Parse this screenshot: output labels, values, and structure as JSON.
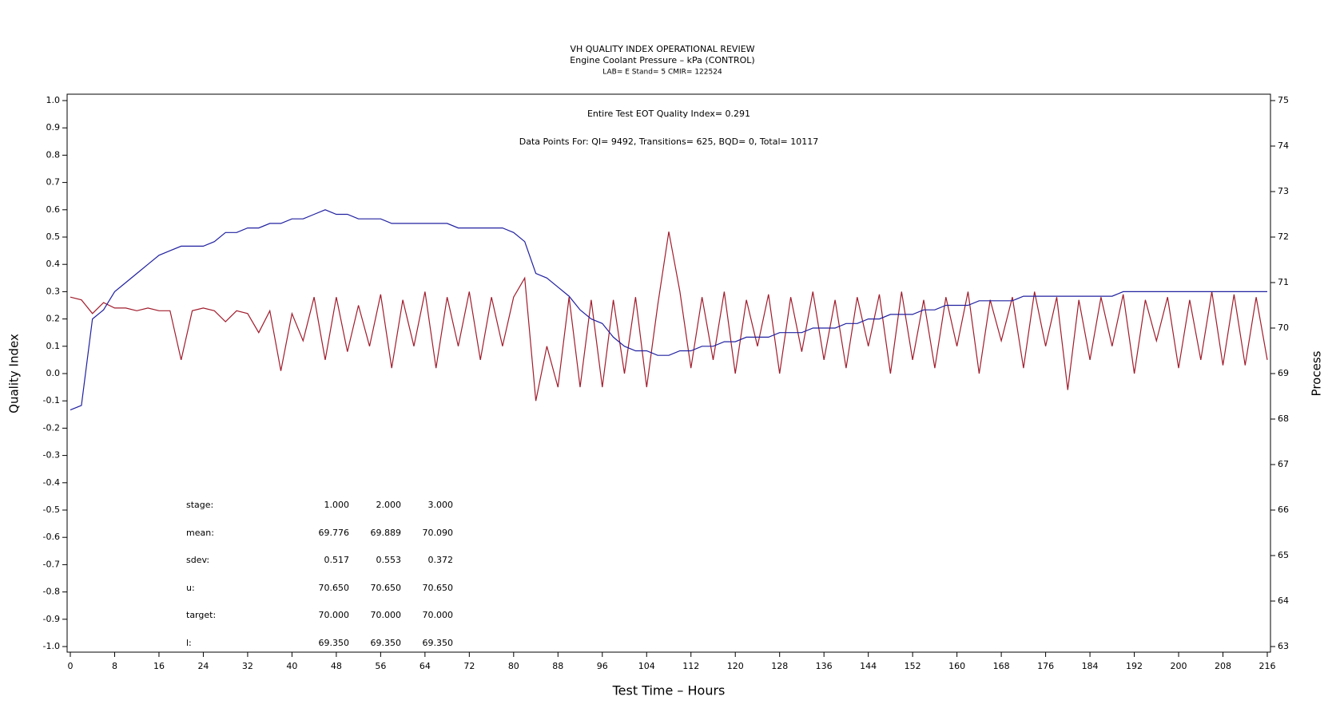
{
  "chart_data": {
    "type": "line",
    "title": "VH QUALITY INDEX OPERATIONAL REVIEW",
    "subtitle": "Engine Coolant Pressure – kPa (CONTROL)",
    "subsubtitle": "LAB= E Stand= 5 CMIR= 122524",
    "annotations": [
      "Entire Test EOT Quality Index=   0.291",
      "Data Points For: QI=  9492, Transitions=    625, BQD=     0, Total= 10117"
    ],
    "stats_table": {
      "rows": [
        [
          "stage:",
          "1.000",
          "2.000",
          "3.000"
        ],
        [
          "mean:",
          "69.776",
          "69.889",
          "70.090"
        ],
        [
          "sdev:",
          "0.517",
          "0.553",
          "0.372"
        ],
        [
          "u:",
          "70.650",
          "70.650",
          "70.650"
        ],
        [
          "target:",
          "70.000",
          "70.000",
          "70.000"
        ],
        [
          "l:",
          "69.350",
          "69.350",
          "69.350"
        ]
      ]
    },
    "x_label": "Test Time – Hours",
    "y_label": "Quality Index",
    "y2_label": "Process",
    "xlim": [
      0,
      216
    ],
    "xticks": [
      0,
      8,
      16,
      24,
      32,
      40,
      48,
      56,
      64,
      72,
      80,
      88,
      96,
      104,
      112,
      120,
      128,
      136,
      144,
      152,
      160,
      168,
      176,
      184,
      192,
      200,
      208,
      216
    ],
    "ylim": [
      -1,
      1
    ],
    "yticks": [
      {
        "value": -1,
        "label": "-1.0"
      },
      -0.9,
      -0.8,
      -0.7,
      -0.6,
      -0.5,
      -0.4,
      -0.3,
      -0.2,
      -0.1,
      {
        "value": 0,
        "label": "0.0"
      },
      0.1,
      0.2,
      0.3,
      0.4,
      0.5,
      0.6,
      0.7,
      0.8,
      0.9,
      {
        "value": 1,
        "label": "1.0"
      }
    ],
    "y2lim": [
      63,
      75
    ],
    "y2ticks": [
      63,
      64,
      65,
      66,
      67,
      68,
      69,
      70,
      71,
      72,
      73,
      74,
      75
    ],
    "x": [
      0,
      2,
      4,
      6,
      8,
      10,
      12,
      14,
      16,
      18,
      20,
      22,
      24,
      26,
      28,
      30,
      32,
      34,
      36,
      38,
      40,
      42,
      44,
      46,
      48,
      50,
      52,
      54,
      56,
      58,
      60,
      62,
      64,
      66,
      68,
      70,
      72,
      74,
      76,
      78,
      80,
      82,
      84,
      86,
      88,
      90,
      92,
      94,
      96,
      98,
      100,
      102,
      104,
      106,
      108,
      110,
      112,
      114,
      116,
      118,
      120,
      122,
      124,
      126,
      128,
      130,
      132,
      134,
      136,
      138,
      140,
      142,
      144,
      146,
      148,
      150,
      152,
      154,
      156,
      158,
      160,
      162,
      164,
      166,
      168,
      170,
      172,
      174,
      176,
      178,
      180,
      182,
      184,
      186,
      188,
      190,
      192,
      194,
      196,
      198,
      200,
      202,
      204,
      206,
      208,
      210,
      212,
      214,
      216
    ],
    "series": [
      {
        "name": "Quality Index",
        "color": "#a01c2c",
        "values": [
          0.28,
          0.27,
          0.22,
          0.26,
          0.24,
          0.24,
          0.23,
          0.24,
          0.23,
          0.23,
          0.05,
          0.23,
          0.24,
          0.23,
          0.19,
          0.23,
          0.22,
          0.15,
          0.23,
          0.01,
          0.22,
          0.12,
          0.28,
          0.05,
          0.28,
          0.08,
          0.25,
          0.1,
          0.29,
          0.02,
          0.27,
          0.1,
          0.3,
          0.02,
          0.28,
          0.1,
          0.3,
          0.05,
          0.28,
          0.1,
          0.28,
          0.35,
          -0.1,
          0.1,
          -0.05,
          0.28,
          -0.05,
          0.27,
          -0.05,
          0.27,
          0.0,
          0.28,
          -0.05,
          0.25,
          0.52,
          0.3,
          0.02,
          0.28,
          0.05,
          0.3,
          0.0,
          0.27,
          0.1,
          0.29,
          0.0,
          0.28,
          0.08,
          0.3,
          0.05,
          0.27,
          0.02,
          0.28,
          0.1,
          0.29,
          0.0,
          0.3,
          0.05,
          0.27,
          0.02,
          0.28,
          0.1,
          0.3,
          0.0,
          0.27,
          0.12,
          0.28,
          0.02,
          0.3,
          0.1,
          0.28,
          -0.06,
          0.27,
          0.05,
          0.28,
          0.1,
          0.29,
          0.0,
          0.27,
          0.12,
          0.28,
          0.02,
          0.27,
          0.05,
          0.3,
          0.03,
          0.29,
          0.03,
          0.28,
          0.05
        ]
      },
      {
        "name": "Process",
        "color": "#2020a0",
        "axis": "y2",
        "values": [
          68.2,
          68.3,
          70.2,
          70.4,
          70.8,
          71.0,
          71.2,
          71.4,
          71.6,
          71.7,
          71.8,
          71.8,
          71.8,
          71.9,
          72.1,
          72.1,
          72.2,
          72.2,
          72.3,
          72.3,
          72.4,
          72.4,
          72.5,
          72.6,
          72.5,
          72.5,
          72.4,
          72.4,
          72.4,
          72.3,
          72.3,
          72.3,
          72.3,
          72.3,
          72.3,
          72.2,
          72.2,
          72.2,
          72.2,
          72.2,
          72.1,
          71.9,
          71.2,
          71.1,
          70.9,
          70.7,
          70.4,
          70.2,
          70.1,
          69.8,
          69.6,
          69.5,
          69.5,
          69.4,
          69.4,
          69.5,
          69.5,
          69.6,
          69.6,
          69.7,
          69.7,
          69.8,
          69.8,
          69.8,
          69.9,
          69.9,
          69.9,
          70.0,
          70.0,
          70.0,
          70.1,
          70.1,
          70.2,
          70.2,
          70.3,
          70.3,
          70.3,
          70.4,
          70.4,
          70.5,
          70.5,
          70.5,
          70.6,
          70.6,
          70.6,
          70.6,
          70.7,
          70.7,
          70.7,
          70.7,
          70.7,
          70.7,
          70.7,
          70.7,
          70.7,
          70.8,
          70.8,
          70.8,
          70.8,
          70.8,
          70.8,
          70.8,
          70.8,
          70.8,
          70.8,
          70.8,
          70.8,
          70.8,
          70.8
        ]
      }
    ]
  }
}
